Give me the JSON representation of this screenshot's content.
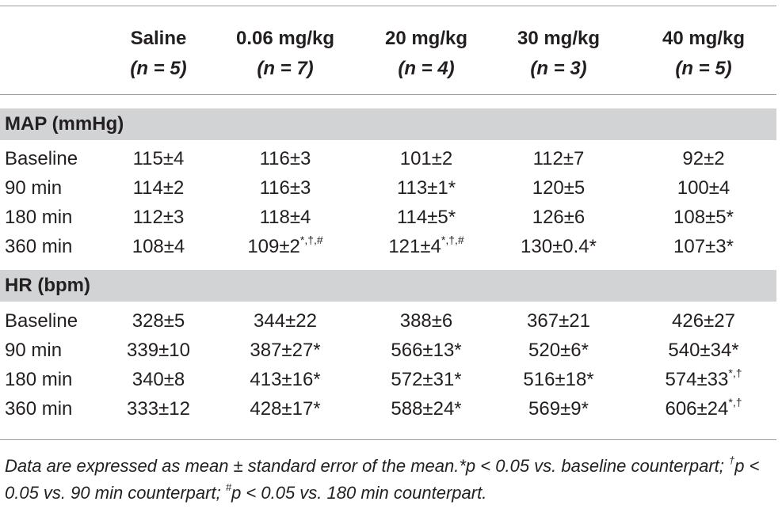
{
  "header": {
    "columns": [
      {
        "name": "Saline",
        "n": "(n = 5)"
      },
      {
        "name": "0.06 mg/kg",
        "n": "(n = 7)"
      },
      {
        "name": "20 mg/kg",
        "n": "(n = 4)"
      },
      {
        "name": "30 mg/kg",
        "n": "(n = 3)"
      },
      {
        "name": "40 mg/kg",
        "n": "(n = 5)"
      }
    ]
  },
  "sections": [
    {
      "title": "MAP (mmHg)",
      "rows": [
        {
          "label": "Baseline",
          "cells": [
            {
              "v": "115±4",
              "s": ""
            },
            {
              "v": "116±3",
              "s": ""
            },
            {
              "v": "101±2",
              "s": ""
            },
            {
              "v": "112±7",
              "s": ""
            },
            {
              "v": "92±2",
              "s": ""
            }
          ]
        },
        {
          "label": "90 min",
          "cells": [
            {
              "v": "114±2",
              "s": ""
            },
            {
              "v": "116±3",
              "s": ""
            },
            {
              "v": "113±1*",
              "s": ""
            },
            {
              "v": "120±5",
              "s": ""
            },
            {
              "v": "100±4",
              "s": ""
            }
          ]
        },
        {
          "label": "180 min",
          "cells": [
            {
              "v": "112±3",
              "s": ""
            },
            {
              "v": "118±4",
              "s": ""
            },
            {
              "v": "114±5*",
              "s": ""
            },
            {
              "v": "126±6",
              "s": ""
            },
            {
              "v": "108±5*",
              "s": ""
            }
          ]
        },
        {
          "label": "360 min",
          "cells": [
            {
              "v": "108±4",
              "s": ""
            },
            {
              "v": "109±2",
              "s": "*,†,#"
            },
            {
              "v": "121±4",
              "s": "*,†,#"
            },
            {
              "v": "130±0.4*",
              "s": ""
            },
            {
              "v": "107±3*",
              "s": ""
            }
          ]
        }
      ]
    },
    {
      "title": "HR (bpm)",
      "rows": [
        {
          "label": "Baseline",
          "cells": [
            {
              "v": "328±5",
              "s": ""
            },
            {
              "v": "344±22",
              "s": ""
            },
            {
              "v": "388±6",
              "s": ""
            },
            {
              "v": "367±21",
              "s": ""
            },
            {
              "v": "426±27",
              "s": ""
            }
          ]
        },
        {
          "label": "90 min",
          "cells": [
            {
              "v": "339±10",
              "s": ""
            },
            {
              "v": "387±27*",
              "s": ""
            },
            {
              "v": "566±13*",
              "s": ""
            },
            {
              "v": "520±6*",
              "s": ""
            },
            {
              "v": "540±34*",
              "s": ""
            }
          ]
        },
        {
          "label": "180 min",
          "cells": [
            {
              "v": "340±8",
              "s": ""
            },
            {
              "v": "413±16*",
              "s": ""
            },
            {
              "v": "572±31*",
              "s": ""
            },
            {
              "v": "516±18*",
              "s": ""
            },
            {
              "v": "574±33",
              "s": "*,†"
            }
          ]
        },
        {
          "label": "360 min",
          "cells": [
            {
              "v": "333±12",
              "s": ""
            },
            {
              "v": "428±17*",
              "s": ""
            },
            {
              "v": "588±24*",
              "s": ""
            },
            {
              "v": "569±9*",
              "s": ""
            },
            {
              "v": "606±24",
              "s": "*,†"
            }
          ]
        }
      ]
    }
  ],
  "footnote": {
    "part1": "Data are expressed as mean ± standard error of the mean.*p < 0.05 vs. baseline counterpart; ",
    "sup1": "†",
    "part2": "p < 0.05 vs. 90 min counterpart; ",
    "sup2": "#",
    "part3": "p < 0.05 vs. 180 min counterpart."
  }
}
